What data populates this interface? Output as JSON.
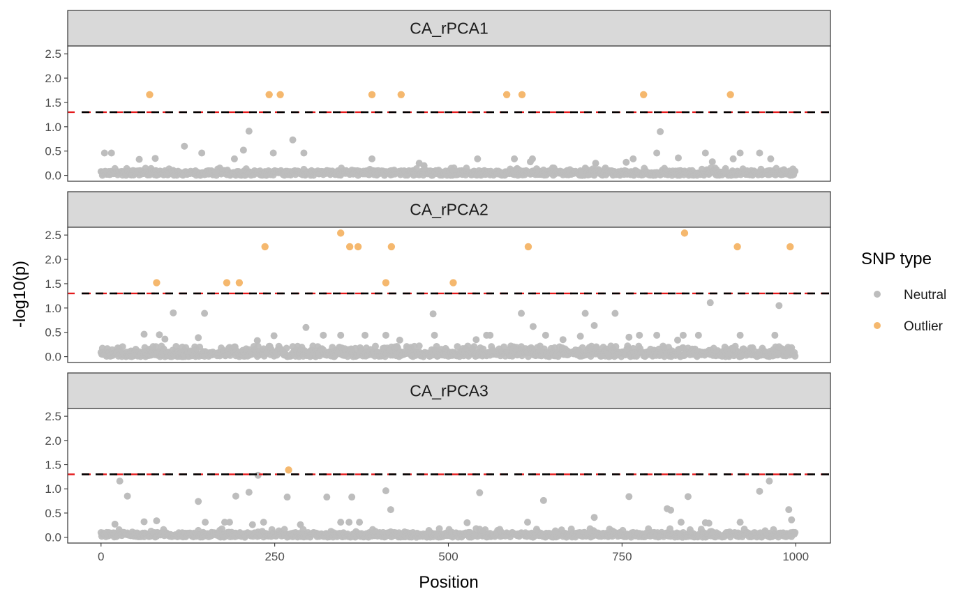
{
  "chart_data": {
    "type": "scatter",
    "facet_type": "faceted-rows",
    "xlabel": "Position",
    "ylabel": "-log10(p)",
    "xlim": [
      -48,
      1050
    ],
    "ylim": [
      -0.12,
      2.66
    ],
    "x_ticks": [
      0,
      250,
      500,
      750,
      1000
    ],
    "y_ticks": [
      0.0,
      0.5,
      1.0,
      1.5,
      2.0,
      2.5
    ],
    "y_tick_labels": [
      "0.0",
      "0.5",
      "1.0",
      "1.5",
      "2.0",
      "2.5"
    ],
    "threshold": 1.3,
    "threshold_style": "dashed",
    "grid": false,
    "legend": {
      "title": "SNP type",
      "position": "right",
      "entries": [
        {
          "label": "Neutral",
          "color": "#BDBDBD"
        },
        {
          "label": "Outlier",
          "color": "#F5B86E"
        }
      ]
    },
    "n_neutral_points_per_panel": 1000,
    "panels": [
      {
        "label": "CA_rPCA1",
        "outliers": [
          [
            70,
            1.66
          ],
          [
            242,
            1.66
          ],
          [
            258,
            1.66
          ],
          [
            390,
            1.66
          ],
          [
            432,
            1.66
          ],
          [
            584,
            1.66
          ],
          [
            606,
            1.66
          ],
          [
            781,
            1.66
          ],
          [
            906,
            1.66
          ]
        ],
        "neutral_highlights": [
          [
            5,
            0.46
          ],
          [
            15,
            0.46
          ],
          [
            55,
            0.33
          ],
          [
            78,
            0.35
          ],
          [
            120,
            0.6
          ],
          [
            145,
            0.46
          ],
          [
            192,
            0.34
          ],
          [
            205,
            0.52
          ],
          [
            213,
            0.91
          ],
          [
            248,
            0.46
          ],
          [
            276,
            0.73
          ],
          [
            292,
            0.46
          ],
          [
            390,
            0.34
          ],
          [
            458,
            0.25
          ],
          [
            465,
            0.2
          ],
          [
            542,
            0.34
          ],
          [
            595,
            0.34
          ],
          [
            618,
            0.28
          ],
          [
            621,
            0.34
          ],
          [
            712,
            0.25
          ],
          [
            756,
            0.27
          ],
          [
            766,
            0.34
          ],
          [
            800,
            0.46
          ],
          [
            805,
            0.9
          ],
          [
            831,
            0.36
          ],
          [
            870,
            0.46
          ],
          [
            880,
            0.28
          ],
          [
            898,
            0.1
          ],
          [
            910,
            0.34
          ],
          [
            920,
            0.46
          ],
          [
            948,
            0.46
          ],
          [
            964,
            0.34
          ]
        ]
      },
      {
        "label": "CA_rPCA2",
        "outliers": [
          [
            345,
            2.54
          ],
          [
            840,
            2.54
          ],
          [
            236,
            2.26
          ],
          [
            358,
            2.26
          ],
          [
            370,
            2.26
          ],
          [
            418,
            2.26
          ],
          [
            615,
            2.26
          ],
          [
            916,
            2.26
          ],
          [
            992,
            2.26
          ],
          [
            80,
            1.52
          ],
          [
            181,
            1.52
          ],
          [
            199,
            1.52
          ],
          [
            410,
            1.52
          ],
          [
            507,
            1.52
          ]
        ],
        "neutral_highlights": [
          [
            62,
            0.46
          ],
          [
            84,
            0.45
          ],
          [
            92,
            0.36
          ],
          [
            104,
            0.9
          ],
          [
            140,
            0.39
          ],
          [
            149,
            0.89
          ],
          [
            225,
            0.33
          ],
          [
            249,
            0.43
          ],
          [
            295,
            0.6
          ],
          [
            320,
            0.44
          ],
          [
            345,
            0.44
          ],
          [
            380,
            0.44
          ],
          [
            410,
            0.44
          ],
          [
            430,
            0.34
          ],
          [
            478,
            0.88
          ],
          [
            480,
            0.44
          ],
          [
            540,
            0.35
          ],
          [
            555,
            0.44
          ],
          [
            560,
            0.44
          ],
          [
            605,
            0.89
          ],
          [
            622,
            0.62
          ],
          [
            640,
            0.44
          ],
          [
            665,
            0.35
          ],
          [
            690,
            0.42
          ],
          [
            697,
            0.89
          ],
          [
            710,
            0.64
          ],
          [
            740,
            0.89
          ],
          [
            760,
            0.4
          ],
          [
            775,
            0.44
          ],
          [
            800,
            0.44
          ],
          [
            830,
            0.34
          ],
          [
            838,
            0.44
          ],
          [
            860,
            0.44
          ],
          [
            877,
            1.11
          ],
          [
            920,
            0.44
          ],
          [
            970,
            0.44
          ],
          [
            976,
            1.05
          ],
          [
            990,
            0.15
          ]
        ]
      },
      {
        "label": "CA_rPCA3",
        "outliers": [
          [
            270,
            1.39
          ]
        ],
        "neutral_highlights": [
          [
            27,
            1.16
          ],
          [
            38,
            0.85
          ],
          [
            20,
            0.27
          ],
          [
            62,
            0.32
          ],
          [
            80,
            0.34
          ],
          [
            140,
            0.74
          ],
          [
            150,
            0.31
          ],
          [
            178,
            0.31
          ],
          [
            185,
            0.31
          ],
          [
            194,
            0.85
          ],
          [
            213,
            0.93
          ],
          [
            218,
            0.26
          ],
          [
            226,
            1.28
          ],
          [
            234,
            0.31
          ],
          [
            268,
            0.83
          ],
          [
            287,
            0.26
          ],
          [
            325,
            0.83
          ],
          [
            345,
            0.31
          ],
          [
            357,
            0.31
          ],
          [
            361,
            0.83
          ],
          [
            372,
            0.31
          ],
          [
            410,
            0.96
          ],
          [
            417,
            0.57
          ],
          [
            527,
            0.3
          ],
          [
            545,
            0.92
          ],
          [
            614,
            0.31
          ],
          [
            637,
            0.76
          ],
          [
            710,
            0.41
          ],
          [
            760,
            0.84
          ],
          [
            815,
            0.59
          ],
          [
            820,
            0.56
          ],
          [
            835,
            0.31
          ],
          [
            845,
            0.84
          ],
          [
            870,
            0.3
          ],
          [
            875,
            0.29
          ],
          [
            920,
            0.31
          ],
          [
            948,
            0.95
          ],
          [
            962,
            1.16
          ],
          [
            990,
            0.57
          ],
          [
            994,
            0.36
          ]
        ]
      }
    ]
  }
}
